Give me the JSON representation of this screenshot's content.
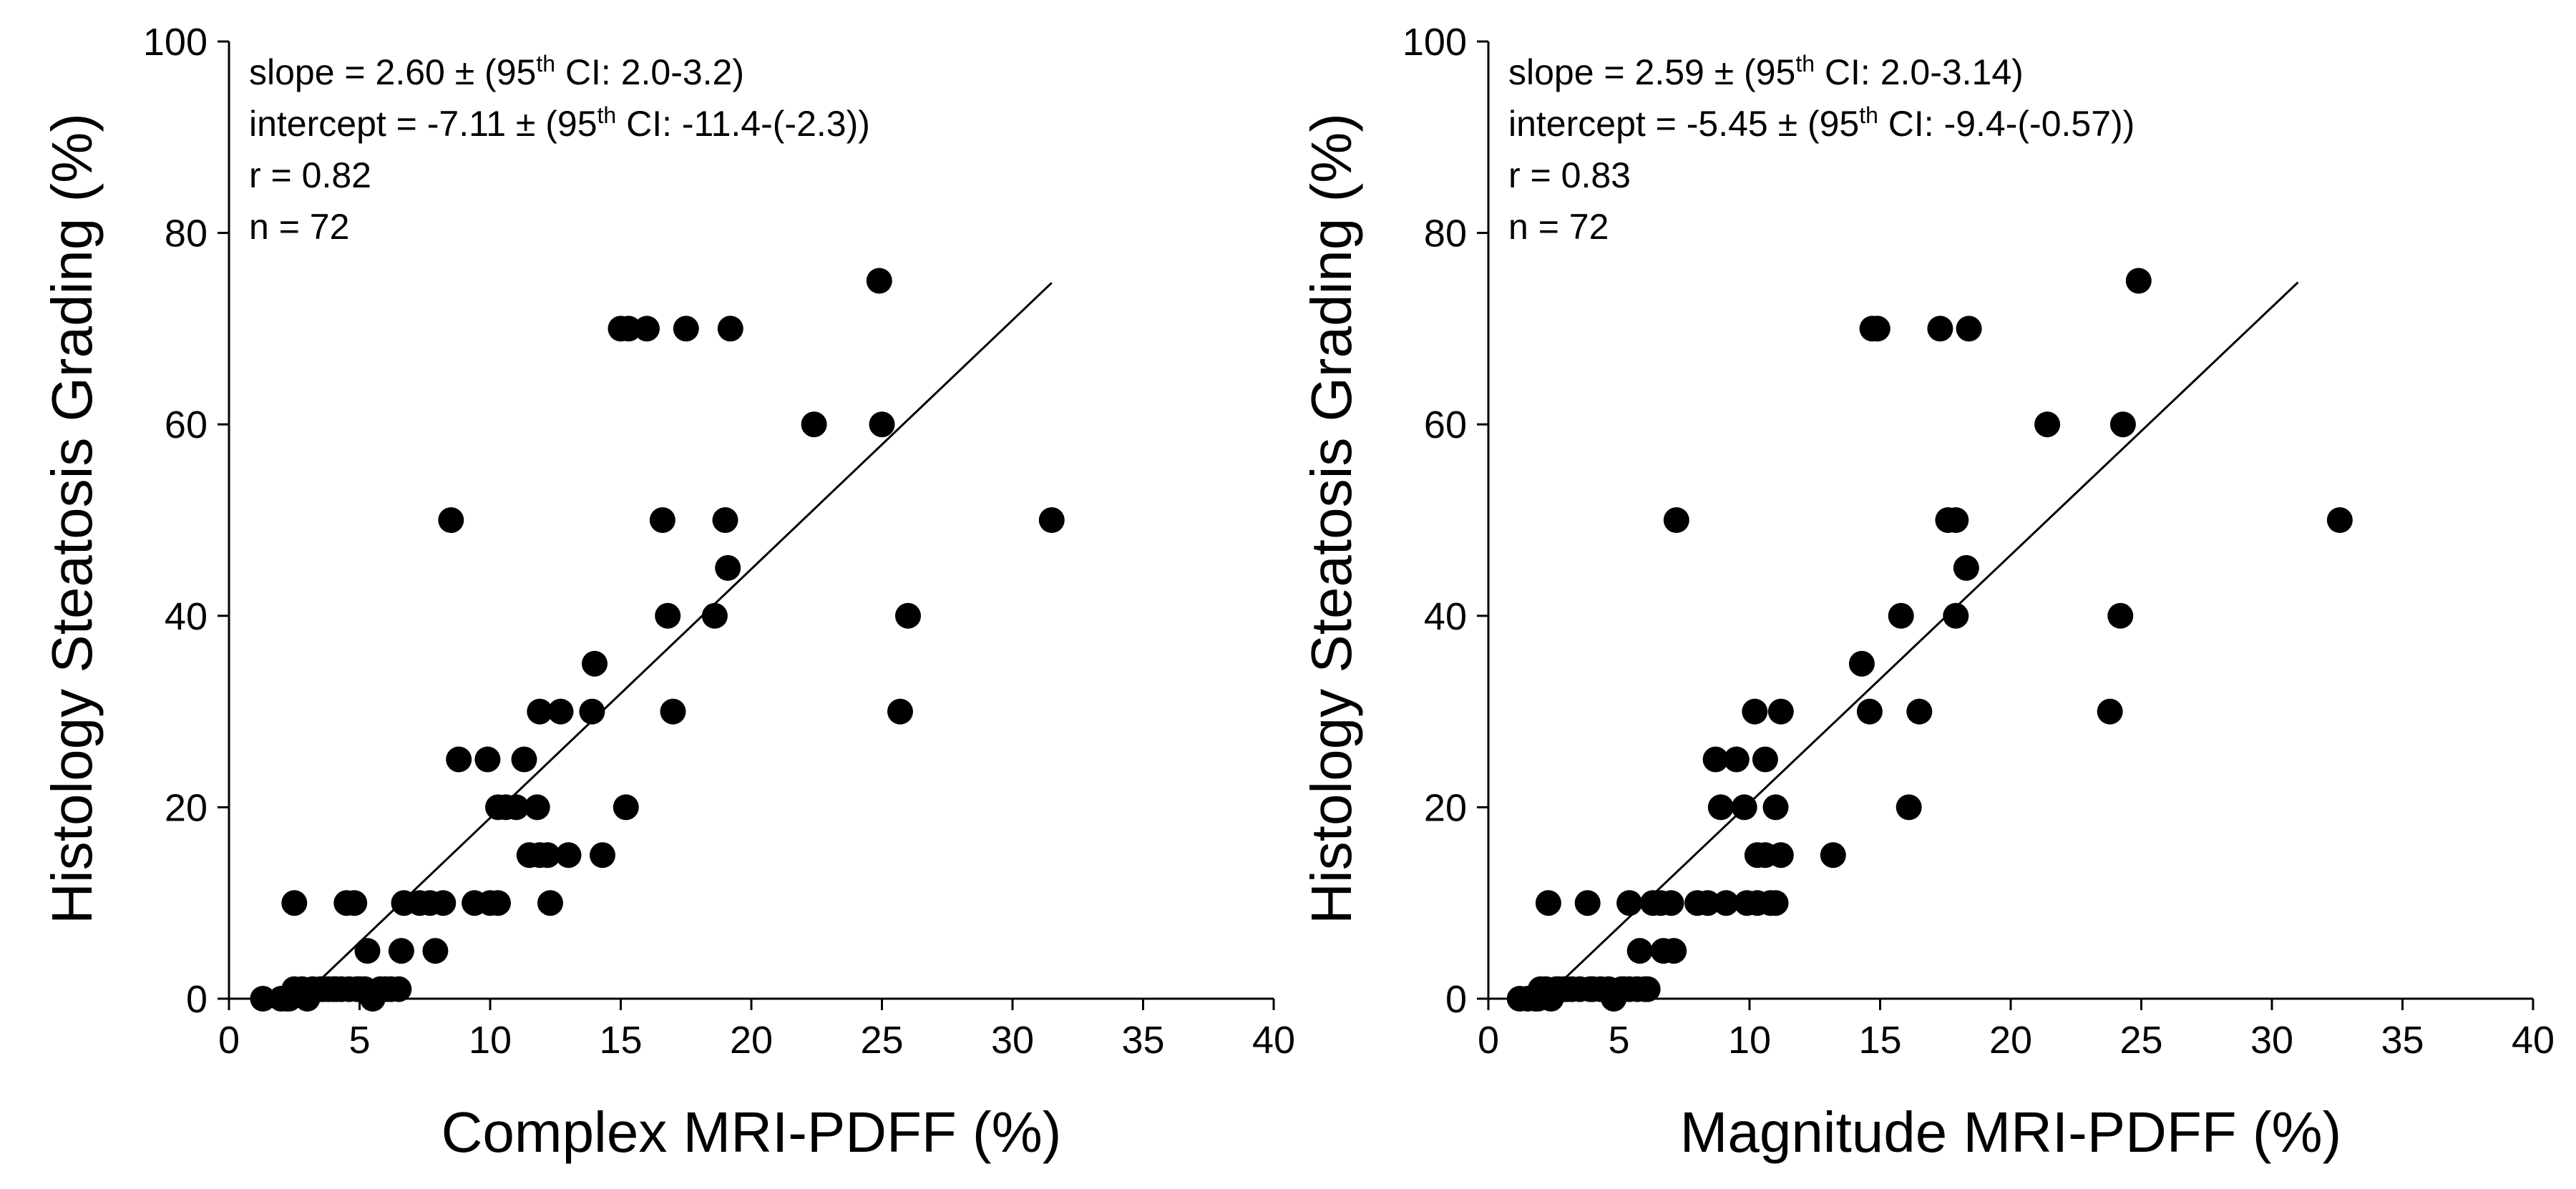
{
  "chart_data": [
    {
      "type": "scatter",
      "title": "",
      "xlabel": "Complex MRI-PDFF (%)",
      "ylabel": "Histology Steatosis Grading (%)",
      "xlim": [
        0,
        40
      ],
      "ylim": [
        0,
        100
      ],
      "xticks": [
        0,
        5,
        10,
        15,
        20,
        25,
        30,
        35,
        40
      ],
      "yticks": [
        0,
        20,
        40,
        60,
        80,
        100
      ],
      "grid": false,
      "annotations": {
        "slope_pre": "slope = 2.60 ± (95",
        "slope_sup": "th",
        "slope_post": " CI: 2.0-3.2)",
        "intercept_pre": "intercept = -7.11 ± (95",
        "intercept_sup": "th",
        "intercept_post": " CI: -11.4-(-2.3))",
        "r": "r = 0.82",
        "n": "n = 72"
      },
      "fit_line": {
        "slope": 2.6,
        "intercept": -7.11,
        "x_range": [
          3.0,
          31.5
        ]
      },
      "points": [
        [
          1.3,
          0
        ],
        [
          2.0,
          0
        ],
        [
          2.3,
          0
        ],
        [
          2.5,
          1
        ],
        [
          2.8,
          1
        ],
        [
          3.0,
          0
        ],
        [
          3.2,
          1
        ],
        [
          3.5,
          1
        ],
        [
          3.8,
          1
        ],
        [
          4.0,
          1
        ],
        [
          4.3,
          1
        ],
        [
          4.6,
          1
        ],
        [
          4.9,
          1
        ],
        [
          5.2,
          1
        ],
        [
          5.5,
          0
        ],
        [
          5.8,
          1
        ],
        [
          6.2,
          1
        ],
        [
          6.5,
          1
        ],
        [
          2.5,
          10
        ],
        [
          4.5,
          10
        ],
        [
          4.8,
          10
        ],
        [
          5.3,
          5
        ],
        [
          6.6,
          5
        ],
        [
          6.7,
          10
        ],
        [
          7.3,
          10
        ],
        [
          7.7,
          10
        ],
        [
          8.2,
          10
        ],
        [
          7.9,
          5
        ],
        [
          9.4,
          10
        ],
        [
          10.0,
          10
        ],
        [
          10.3,
          10
        ],
        [
          8.8,
          25
        ],
        [
          9.9,
          25
        ],
        [
          11.3,
          25
        ],
        [
          10.3,
          20
        ],
        [
          10.6,
          20
        ],
        [
          11.0,
          20
        ],
        [
          11.8,
          20
        ],
        [
          11.5,
          15
        ],
        [
          11.9,
          15
        ],
        [
          12.2,
          15
        ],
        [
          13.0,
          15
        ],
        [
          14.3,
          15
        ],
        [
          12.3,
          10
        ],
        [
          11.9,
          30
        ],
        [
          12.7,
          30
        ],
        [
          13.9,
          30
        ],
        [
          14.0,
          35
        ],
        [
          15.2,
          20
        ],
        [
          17.0,
          30
        ],
        [
          16.8,
          40
        ],
        [
          18.6,
          40
        ],
        [
          19.1,
          45
        ],
        [
          19.0,
          50
        ],
        [
          16.6,
          50
        ],
        [
          8.5,
          50
        ],
        [
          15.0,
          70
        ],
        [
          15.3,
          70
        ],
        [
          16.0,
          70
        ],
        [
          17.5,
          70
        ],
        [
          19.2,
          70
        ],
        [
          22.4,
          60
        ],
        [
          25.0,
          60
        ],
        [
          24.9,
          75
        ],
        [
          26.0,
          40
        ],
        [
          25.7,
          30
        ],
        [
          31.5,
          50
        ],
        [
          3.6,
          1
        ],
        [
          4.1,
          1
        ],
        [
          5.0,
          1
        ],
        [
          6.0,
          1
        ],
        [
          2.2,
          0
        ]
      ]
    },
    {
      "type": "scatter",
      "title": "",
      "xlabel": "Magnitude MRI-PDFF (%)",
      "ylabel": "Histology Steatosis Grading (%)",
      "xlim": [
        0,
        40
      ],
      "ylim": [
        0,
        100
      ],
      "xticks": [
        0,
        5,
        10,
        15,
        20,
        25,
        30,
        35,
        40
      ],
      "yticks": [
        0,
        20,
        40,
        60,
        80,
        100
      ],
      "grid": false,
      "annotations": {
        "slope_pre": "slope = 2.59 ± (95",
        "slope_sup": "th",
        "slope_post": " CI: 2.0-3.14)",
        "intercept_pre": "intercept = -5.45 ± (95",
        "intercept_sup": "th",
        "intercept_post": " CI: -9.4-(-0.57))",
        "r": "r = 0.83",
        "n": "n = 72"
      },
      "fit_line": {
        "slope": 2.59,
        "intercept": -5.45,
        "x_range": [
          2.5,
          31.0
        ]
      },
      "points": [
        [
          1.2,
          0
        ],
        [
          1.5,
          0
        ],
        [
          1.8,
          0
        ],
        [
          2.0,
          1
        ],
        [
          2.2,
          1
        ],
        [
          2.4,
          0
        ],
        [
          2.6,
          1
        ],
        [
          2.9,
          1
        ],
        [
          3.2,
          1
        ],
        [
          3.5,
          1
        ],
        [
          3.9,
          1
        ],
        [
          4.3,
          1
        ],
        [
          4.8,
          0
        ],
        [
          5.1,
          1
        ],
        [
          5.4,
          1
        ],
        [
          5.7,
          1
        ],
        [
          6.0,
          1
        ],
        [
          2.3,
          10
        ],
        [
          3.8,
          10
        ],
        [
          5.4,
          10
        ],
        [
          5.8,
          5
        ],
        [
          6.3,
          10
        ],
        [
          6.6,
          10
        ],
        [
          7.0,
          10
        ],
        [
          6.7,
          5
        ],
        [
          7.1,
          5
        ],
        [
          8.0,
          10
        ],
        [
          8.4,
          10
        ],
        [
          8.7,
          25
        ],
        [
          9.5,
          25
        ],
        [
          8.9,
          20
        ],
        [
          9.8,
          20
        ],
        [
          10.6,
          25
        ],
        [
          10.3,
          15
        ],
        [
          10.6,
          15
        ],
        [
          11.2,
          15
        ],
        [
          11.0,
          20
        ],
        [
          9.9,
          10
        ],
        [
          10.3,
          10
        ],
        [
          10.8,
          10
        ],
        [
          10.2,
          30
        ],
        [
          11.2,
          30
        ],
        [
          13.2,
          15
        ],
        [
          14.3,
          35
        ],
        [
          14.6,
          30
        ],
        [
          16.1,
          20
        ],
        [
          16.5,
          30
        ],
        [
          15.8,
          40
        ],
        [
          17.9,
          40
        ],
        [
          18.3,
          45
        ],
        [
          17.6,
          50
        ],
        [
          17.9,
          50
        ],
        [
          7.2,
          50
        ],
        [
          14.7,
          70
        ],
        [
          14.9,
          70
        ],
        [
          17.3,
          70
        ],
        [
          18.4,
          70
        ],
        [
          21.4,
          60
        ],
        [
          24.3,
          60
        ],
        [
          24.9,
          75
        ],
        [
          24.2,
          40
        ],
        [
          23.8,
          30
        ],
        [
          32.6,
          50
        ],
        [
          3.0,
          1
        ],
        [
          4.0,
          1
        ],
        [
          4.6,
          1
        ],
        [
          5.2,
          1
        ],
        [
          1.9,
          0
        ],
        [
          2.7,
          1
        ],
        [
          6.1,
          1
        ],
        [
          9.1,
          10
        ],
        [
          11.0,
          10
        ]
      ]
    }
  ]
}
